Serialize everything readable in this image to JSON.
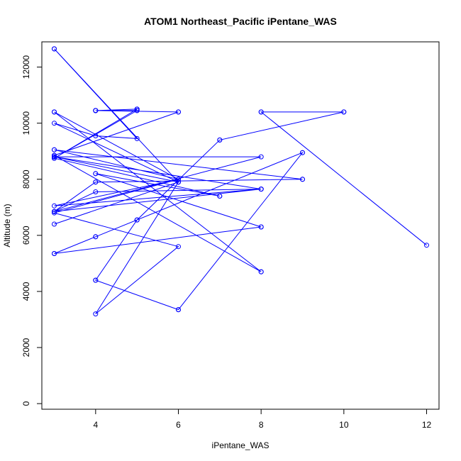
{
  "chart_data": {
    "type": "line",
    "title": "ATOM1 Northeast_Pacific iPentane_WAS",
    "xlabel": "iPentane_WAS",
    "ylabel": "Altitude (m)",
    "xlim": [
      2.7,
      12.3
    ],
    "ylim": [
      -200,
      12900
    ],
    "x_ticks": [
      4,
      6,
      8,
      10,
      12
    ],
    "y_ticks": [
      0,
      2000,
      4000,
      6000,
      8000,
      10000,
      12000
    ],
    "x_tick_labels": [
      "4",
      "6",
      "8",
      "10",
      "12"
    ],
    "y_tick_labels": [
      "0",
      "2000",
      "4000",
      "6000",
      "8000",
      "10000",
      "12000"
    ],
    "grid": false,
    "series_color": "#0000ff",
    "series": [
      {
        "points": [
          [
            3,
            12650
          ],
          [
            6,
            7900
          ],
          [
            3,
            8800
          ],
          [
            8,
            7650
          ],
          [
            3,
            6850
          ],
          [
            4,
            7900
          ],
          [
            9,
            8000
          ],
          [
            3,
            9050
          ],
          [
            6,
            8000
          ],
          [
            3,
            10400
          ],
          [
            8,
            4700
          ],
          [
            3,
            8850
          ],
          [
            6,
            10400
          ],
          [
            4,
            10450
          ],
          [
            5,
            10500
          ],
          [
            4,
            10450
          ],
          [
            5,
            10450
          ],
          [
            4,
            10450
          ],
          [
            5,
            10500
          ],
          [
            3,
            8750
          ],
          [
            7,
            7400
          ],
          [
            4,
            8200
          ],
          [
            8,
            6300
          ],
          [
            3,
            5350
          ],
          [
            4,
            5950
          ],
          [
            9,
            8950
          ],
          [
            6,
            3350
          ],
          [
            4,
            4400
          ],
          [
            5,
            6550
          ],
          [
            7,
            9400
          ],
          [
            10,
            10400
          ],
          [
            8,
            10400
          ],
          [
            12,
            5650
          ],
          [
            8,
            10400
          ],
          [
            10,
            10400
          ],
          [
            7,
            9400
          ],
          [
            5,
            6550
          ],
          [
            4,
            4400
          ],
          [
            6,
            3350
          ],
          [
            9,
            8950
          ],
          [
            4,
            5950
          ],
          [
            3,
            5350
          ],
          [
            8,
            6300
          ],
          [
            4,
            8200
          ],
          [
            7,
            7400
          ],
          [
            3,
            8750
          ],
          [
            5,
            10450
          ],
          [
            4,
            10450
          ],
          [
            5,
            10500
          ],
          [
            4,
            10450
          ],
          [
            6,
            10400
          ],
          [
            3,
            8850
          ],
          [
            8,
            4700
          ],
          [
            3,
            10400
          ],
          [
            6,
            8000
          ],
          [
            3,
            9050
          ],
          [
            9,
            8000
          ],
          [
            4,
            7900
          ],
          [
            3,
            6850
          ],
          [
            8,
            7650
          ],
          [
            3,
            8800
          ],
          [
            6,
            7900
          ],
          [
            3,
            12650
          ],
          [
            5,
            9450
          ],
          [
            4,
            9550
          ],
          [
            3,
            10000
          ],
          [
            6,
            7900
          ],
          [
            3,
            8800
          ],
          [
            8,
            8800
          ],
          [
            3,
            6850
          ],
          [
            4,
            7550
          ],
          [
            8,
            7650
          ],
          [
            3,
            7050
          ],
          [
            6,
            8000
          ],
          [
            3,
            6800
          ],
          [
            6,
            5600
          ],
          [
            4,
            3200
          ],
          [
            6,
            7900
          ],
          [
            3,
            6400
          ]
        ]
      }
    ]
  }
}
